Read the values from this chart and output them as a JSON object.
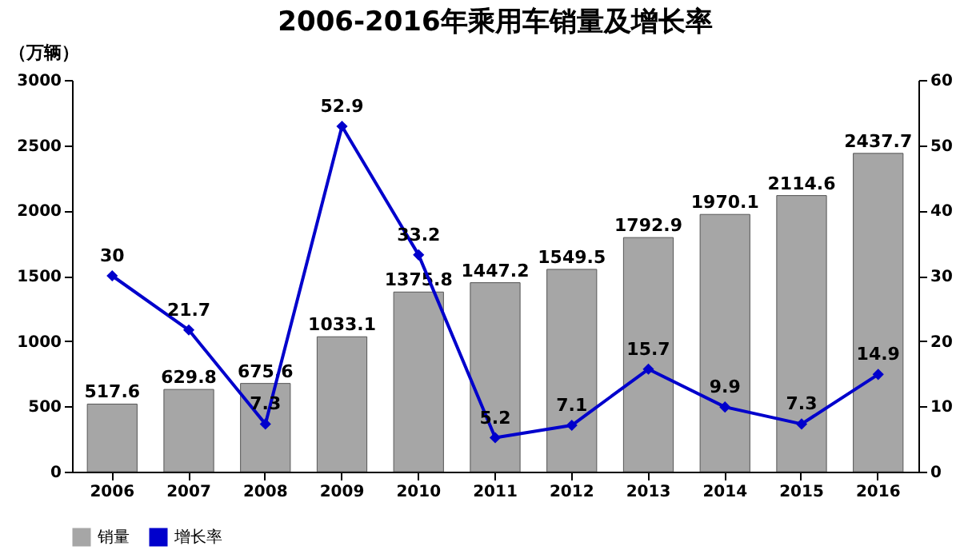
{
  "chart_data": {
    "type": "bar",
    "title": "2006-2016年乘用车销量及增长率",
    "ylabel": "（万辆）",
    "categories": [
      "2006",
      "2007",
      "2008",
      "2009",
      "2010",
      "2011",
      "2012",
      "2013",
      "2014",
      "2015",
      "2016"
    ],
    "series": [
      {
        "name": "销量",
        "color": "#a6a6a6",
        "values": [
          517.6,
          629.8,
          675.6,
          1033.1,
          1375.8,
          1447.2,
          1549.5,
          1792.9,
          1970.1,
          2114.6,
          2437.7
        ]
      },
      {
        "name": "增长率",
        "type": "line",
        "axis": "y2",
        "color": "#0000cc",
        "values": [
          30,
          21.7,
          7.3,
          52.9,
          33.2,
          5.2,
          7.1,
          15.7,
          9.9,
          7.3,
          14.9
        ]
      }
    ],
    "ylim": [
      0,
      3000
    ],
    "yticks": [
      0,
      500,
      1000,
      1500,
      2000,
      2500,
      3000
    ],
    "y2lim": [
      0,
      60
    ],
    "y2ticks": [
      0,
      10,
      20,
      30,
      40,
      50,
      60
    ],
    "data_labels": true,
    "legend": "bottom",
    "marker": "diamond",
    "grid": false
  }
}
